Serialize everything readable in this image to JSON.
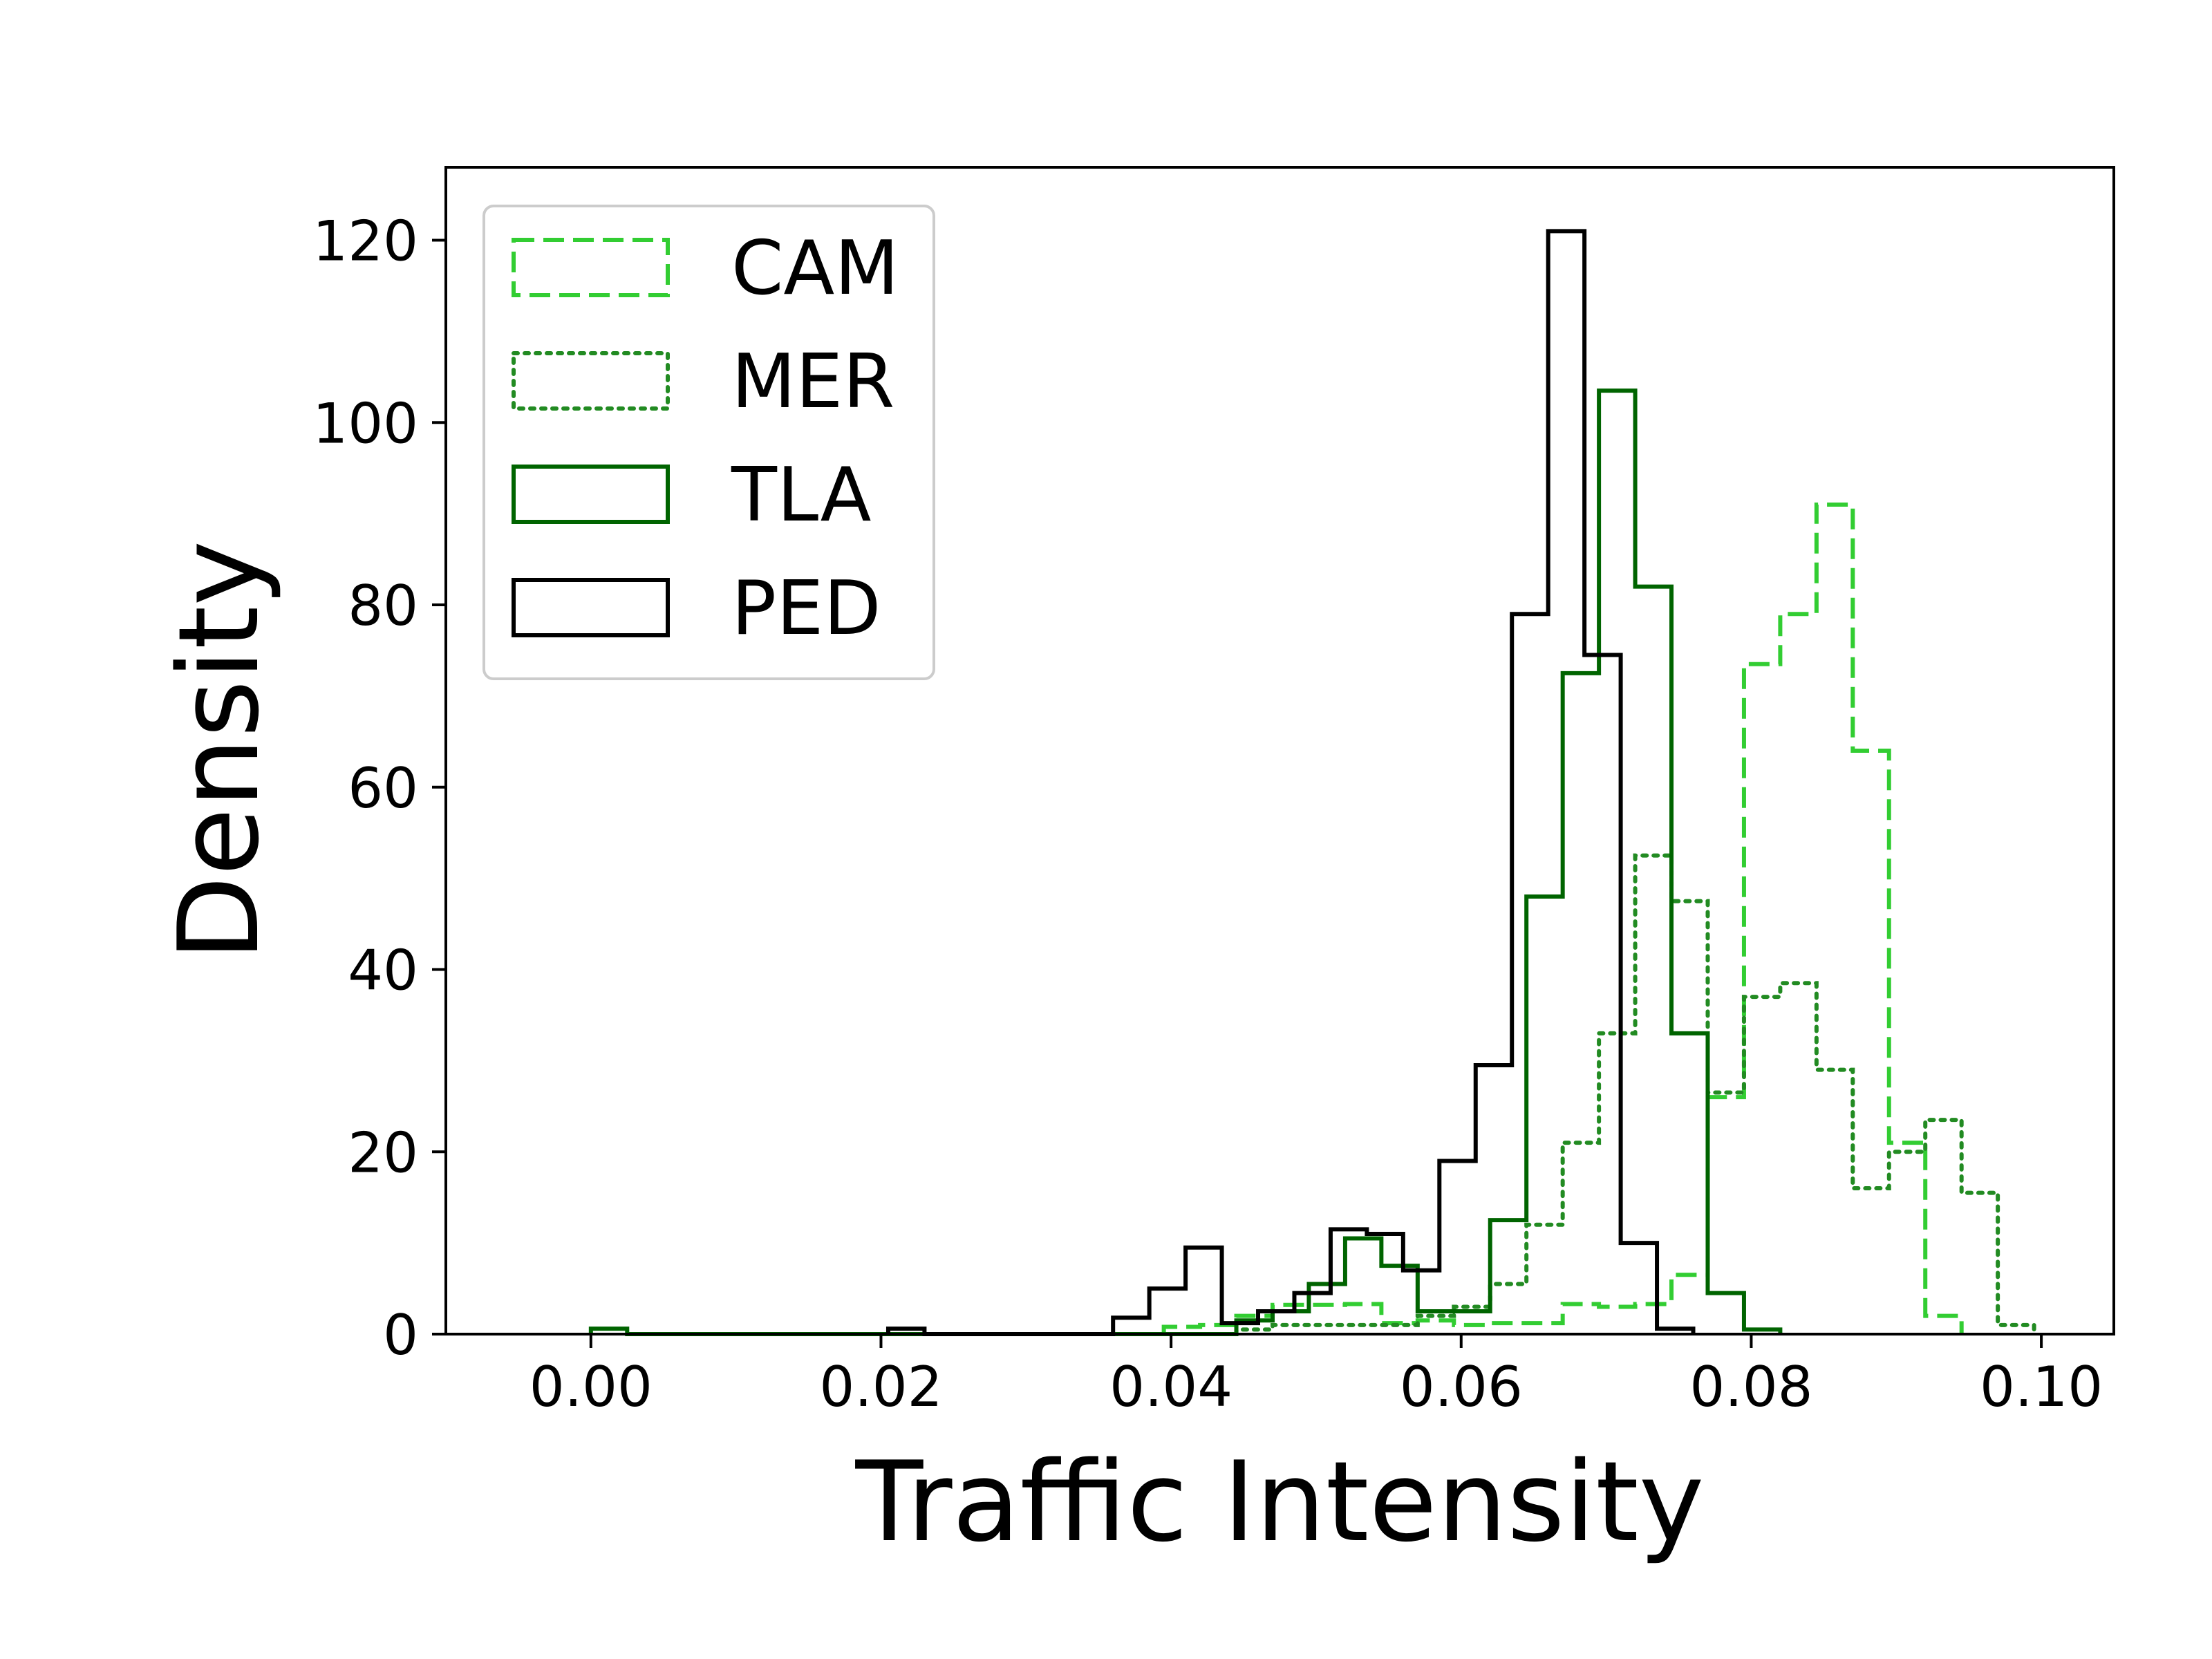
{
  "chart_data": {
    "type": "step_histogram",
    "title": "",
    "xlabel": "Traffic Intensity",
    "ylabel": "Density",
    "xlim": [
      -0.01,
      0.105
    ],
    "ylim": [
      0,
      128
    ],
    "xticks": [
      0.0,
      0.02,
      0.04,
      0.06,
      0.08,
      0.1
    ],
    "xtick_labels": [
      "0.00",
      "0.02",
      "0.04",
      "0.06",
      "0.08",
      "0.10"
    ],
    "yticks": [
      0,
      20,
      40,
      60,
      80,
      100,
      120
    ],
    "ytick_labels": [
      "0",
      "20",
      "40",
      "60",
      "80",
      "100",
      "120"
    ],
    "grid": false,
    "legend_position": "upper-left",
    "series": [
      {
        "name": "CAM",
        "color": "#32cd32",
        "linestyle": "dashed",
        "edges": [
          0.0395,
          0.042,
          0.0445,
          0.047,
          0.0495,
          0.052,
          0.0545,
          0.057,
          0.0595,
          0.062,
          0.0645,
          0.067,
          0.0695,
          0.072,
          0.0745,
          0.077,
          0.0795,
          0.082,
          0.0845,
          0.087,
          0.0895,
          0.092,
          0.0945
        ],
        "values": [
          0.8,
          1.0,
          2.0,
          3.2,
          3.2,
          3.3,
          1.2,
          1.5,
          1.0,
          1.2,
          1.2,
          3.3,
          3.0,
          3.3,
          6.5,
          26.0,
          73.5,
          79.0,
          91.0,
          64.0,
          21.0,
          2.0
        ]
      },
      {
        "name": "MER",
        "color": "#228b22",
        "linestyle": "dotted",
        "edges": [
          0.0445,
          0.047,
          0.0495,
          0.052,
          0.0545,
          0.057,
          0.0595,
          0.062,
          0.0645,
          0.067,
          0.0695,
          0.072,
          0.0745,
          0.077,
          0.0795,
          0.082,
          0.0845,
          0.087,
          0.0895,
          0.092,
          0.0945,
          0.097,
          0.0995
        ],
        "values": [
          0.5,
          1.0,
          1.0,
          1.0,
          1.0,
          2.0,
          3.0,
          5.5,
          12.0,
          21.0,
          33.0,
          52.5,
          47.5,
          26.5,
          37.0,
          38.5,
          29.0,
          16.0,
          20.0,
          23.5,
          15.5,
          1.0
        ]
      },
      {
        "name": "TLA",
        "color": "#006400",
        "linestyle": "solid",
        "edges": [
          0.0,
          0.0025,
          0.0445,
          0.047,
          0.0495,
          0.052,
          0.0545,
          0.057,
          0.0595,
          0.062,
          0.0645,
          0.067,
          0.0695,
          0.072,
          0.0745,
          0.077,
          0.0795,
          0.082
        ],
        "values": [
          0.6,
          0.0,
          1.5,
          2.5,
          5.5,
          10.5,
          7.5,
          2.5,
          2.5,
          12.5,
          48.0,
          72.5,
          103.5,
          82.0,
          33.0,
          4.5,
          0.5
        ]
      },
      {
        "name": "PED",
        "color": "#000000",
        "linestyle": "solid",
        "edges": [
          0.0205,
          0.023,
          0.036,
          0.0385,
          0.041,
          0.0435,
          0.046,
          0.0485,
          0.051,
          0.0535,
          0.056,
          0.0585,
          0.061,
          0.0635,
          0.066,
          0.0685,
          0.071,
          0.0735,
          0.076
        ],
        "values": [
          0.6,
          0.0,
          1.8,
          5.0,
          9.5,
          1.2,
          2.5,
          4.5,
          11.5,
          11.0,
          7.0,
          19.0,
          29.5,
          79.0,
          121.0,
          74.5,
          10.0,
          0.6
        ]
      }
    ]
  }
}
